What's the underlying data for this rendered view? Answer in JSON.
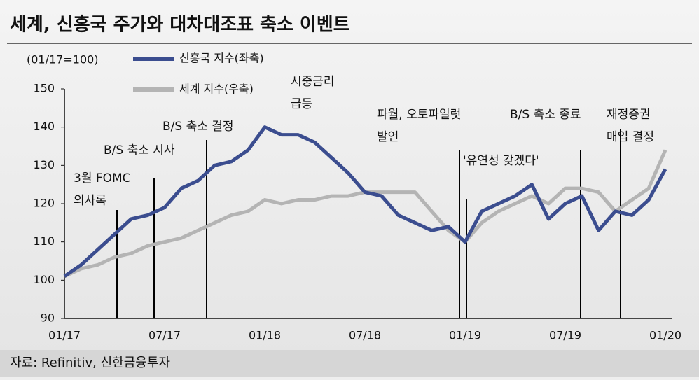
{
  "chart_data": {
    "type": "line",
    "title": "세계, 신흥국 주가와 대차대조표 축소 이벤트",
    "y_label": "(01/17=100)",
    "source": "자료: Refinitiv, 신한금융투자",
    "categories": [
      "01/17",
      null,
      null,
      null,
      null,
      null,
      "07/17",
      null,
      null,
      null,
      null,
      null,
      "01/18",
      null,
      null,
      null,
      null,
      null,
      "07/18",
      null,
      null,
      null,
      null,
      null,
      "01/19",
      null,
      null,
      null,
      null,
      null,
      "07/19",
      null,
      null,
      null,
      null,
      null,
      "01/20"
    ],
    "series": [
      {
        "name": "신흥국 지수(좌축)",
        "color": "#3b4d8f",
        "values": [
          101,
          104,
          108,
          112,
          116,
          117,
          119,
          124,
          126,
          130,
          131,
          134,
          140,
          138,
          138,
          136,
          132,
          128,
          123,
          122,
          117,
          115,
          113,
          114,
          110,
          118,
          120,
          122,
          125,
          116,
          120,
          122,
          113,
          118,
          117,
          121,
          129
        ]
      },
      {
        "name": "세계 지수(우축)",
        "color": "#b4b4b4",
        "values": [
          101,
          103,
          104,
          106,
          107,
          109,
          110,
          111,
          113,
          115,
          117,
          118,
          121,
          120,
          121,
          121,
          122,
          122,
          123,
          123,
          123,
          123,
          118,
          113,
          110,
          115,
          118,
          120,
          122,
          120,
          124,
          124,
          123,
          118,
          121,
          124,
          134
        ]
      }
    ],
    "ylim": [
      90,
      150
    ],
    "yticks": [
      90,
      100,
      110,
      120,
      130,
      140,
      150
    ],
    "annotations": [
      {
        "lines": [
          "3월 FOMC",
          "의사록"
        ]
      },
      {
        "lines": [
          "B/S 축소 시사"
        ]
      },
      {
        "lines": [
          "B/S 축소 결정"
        ]
      },
      {
        "lines": [
          "시중금리",
          "급등"
        ]
      },
      {
        "lines": [
          "파월, 오토파일럿",
          "발언"
        ]
      },
      {
        "lines": [
          "'유연성 갖겠다'"
        ]
      },
      {
        "lines": [
          "B/S 축소 종료"
        ]
      },
      {
        "lines": [
          "재정증권",
          "매입 결정"
        ]
      }
    ]
  }
}
